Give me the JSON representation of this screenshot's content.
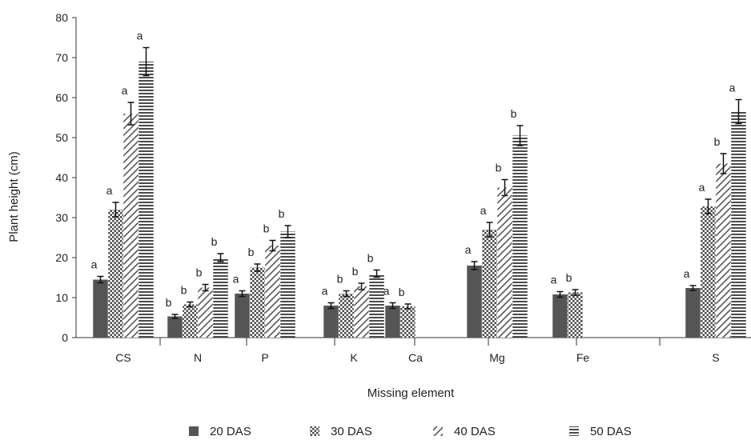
{
  "chart_data": {
    "type": "bar",
    "xlabel": "Missing element",
    "ylabel": "Plant height (cm)",
    "ylim": [
      0,
      80
    ],
    "yticks": [
      0,
      10,
      20,
      30,
      40,
      50,
      60,
      70,
      80
    ],
    "categories": [
      "CS",
      "N",
      "P",
      "K",
      "Ca",
      "Mg",
      "Fe",
      "S"
    ],
    "legend_position": "bottom",
    "series": [
      {
        "name": "20 DAS",
        "pattern": "solid",
        "values": [
          14.5,
          5.3,
          11,
          8,
          8,
          18,
          10.8,
          12.4
        ],
        "errors": [
          0.8,
          0.5,
          0.7,
          0.7,
          0.7,
          1.0,
          0.7,
          0.6
        ],
        "sig": [
          "a",
          "b",
          "a",
          "a",
          "a",
          "a",
          "a",
          "a"
        ]
      },
      {
        "name": "30 DAS",
        "pattern": "crosshatch",
        "values": [
          32,
          8.3,
          17.5,
          11,
          7.8,
          27,
          11.3,
          32.8
        ],
        "errors": [
          1.8,
          0.6,
          0.9,
          0.7,
          0.6,
          1.8,
          0.7,
          1.8
        ],
        "sig": [
          "a",
          "b",
          "b",
          "b",
          "b",
          "a",
          "b",
          "a"
        ]
      },
      {
        "name": "40 DAS",
        "pattern": "diagonal",
        "values": [
          56,
          12.5,
          23,
          12.8,
          null,
          37.5,
          null,
          43.5
        ],
        "errors": [
          2.8,
          0.8,
          1.3,
          0.8,
          null,
          2.0,
          null,
          2.5
        ],
        "sig": [
          "a",
          "b",
          "b",
          "b",
          "",
          "b",
          "",
          "b"
        ]
      },
      {
        "name": "50 DAS",
        "pattern": "horizontal",
        "values": [
          69,
          20,
          26.5,
          16,
          null,
          50.5,
          null,
          56.5
        ],
        "errors": [
          3.5,
          1.0,
          1.5,
          0.9,
          null,
          2.5,
          null,
          3.0
        ],
        "sig": [
          "a",
          "b",
          "b",
          "b",
          "",
          "b",
          "",
          "a"
        ]
      }
    ]
  }
}
